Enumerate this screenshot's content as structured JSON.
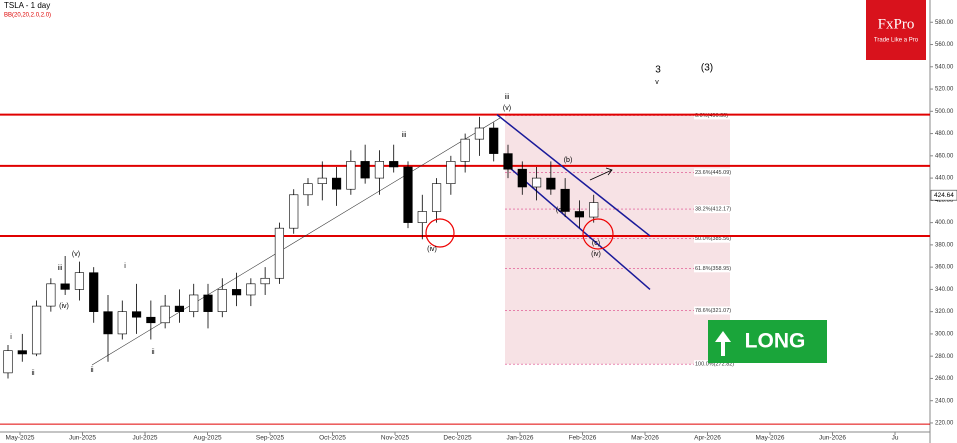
{
  "chart_data": {
    "type": "candlestick",
    "title": "TSLA - 1 day",
    "subtitle": "BB(20,20,2.0,2.0)",
    "x_labels": [
      "May-2025",
      "Jun-2025",
      "Jul-2025",
      "Aug-2025",
      "Sep-2025",
      "Oct-2025",
      "Nov-2025",
      "Dec-2025",
      "Jan-2026",
      "Feb-2026",
      "Mar-2026",
      "Apr-2026",
      "May-2026",
      "Jun-2026",
      "Ju"
    ],
    "open": [
      265,
      285,
      282,
      325,
      345,
      340,
      355,
      320,
      300,
      320,
      315,
      310,
      325,
      320,
      335,
      320,
      340,
      335,
      345,
      350,
      395,
      425,
      435,
      440,
      430,
      455,
      440,
      455,
      450,
      400,
      410,
      435,
      455,
      475,
      485,
      462,
      448,
      432,
      440,
      430,
      410,
      405
    ],
    "high": [
      290,
      300,
      330,
      350,
      370,
      365,
      360,
      335,
      330,
      345,
      330,
      335,
      340,
      345,
      345,
      350,
      355,
      350,
      360,
      400,
      430,
      440,
      455,
      450,
      465,
      470,
      465,
      470,
      455,
      425,
      440,
      460,
      480,
      495,
      490,
      470,
      455,
      450,
      455,
      440,
      420,
      425
    ],
    "low": [
      260,
      275,
      280,
      320,
      335,
      330,
      310,
      275,
      295,
      300,
      295,
      305,
      310,
      315,
      305,
      315,
      325,
      325,
      335,
      345,
      390,
      415,
      420,
      415,
      425,
      435,
      425,
      445,
      395,
      385,
      400,
      425,
      445,
      460,
      455,
      440,
      425,
      420,
      425,
      405,
      395,
      400
    ],
    "close": [
      285,
      282,
      325,
      345,
      340,
      355,
      320,
      300,
      320,
      315,
      310,
      325,
      320,
      335,
      320,
      340,
      335,
      345,
      350,
      395,
      425,
      435,
      440,
      430,
      455,
      440,
      455,
      450,
      400,
      410,
      435,
      455,
      475,
      485,
      462,
      448,
      432,
      440,
      430,
      410,
      405,
      418
    ],
    "ylim": [
      202,
      600
    ],
    "yticks": [
      {
        "value": 580,
        "label": "580.00"
      },
      {
        "value": 560,
        "label": "560.00"
      },
      {
        "value": 540,
        "label": "540.00"
      },
      {
        "value": 520,
        "label": "520.00"
      },
      {
        "value": 500,
        "label": "500.00"
      },
      {
        "value": 480,
        "label": "480.00"
      },
      {
        "value": 460,
        "label": "460.00"
      },
      {
        "value": 440,
        "label": "440.00"
      },
      {
        "value": 420,
        "label": "420.00"
      },
      {
        "value": 400,
        "label": "400.00"
      },
      {
        "value": 380,
        "label": "380.00"
      },
      {
        "value": 360,
        "label": "360.00"
      },
      {
        "value": 340,
        "label": "340.00"
      },
      {
        "value": 320,
        "label": "320.00"
      },
      {
        "value": 300,
        "label": "300.00"
      },
      {
        "value": 280,
        "label": "280.00"
      },
      {
        "value": 260,
        "label": "260.00"
      },
      {
        "value": 240,
        "label": "240.00"
      },
      {
        "value": 220,
        "label": "220.00"
      }
    ],
    "last_price": 424.64,
    "levels": [
      497,
      451,
      388,
      219
    ],
    "level_color": "#e00000",
    "fib": [
      {
        "value": 496.3,
        "label": "0.0%(496.30)"
      },
      {
        "value": 445.09,
        "label": "23.6%(445.09)"
      },
      {
        "value": 412.17,
        "label": "38.2%(412.17)"
      },
      {
        "value": 385.56,
        "label": "50.0%(385.56)"
      },
      {
        "value": 358.95,
        "label": "61.8%(358.95)"
      },
      {
        "value": 321.07,
        "label": "78.6%(321.07)"
      },
      {
        "value": 272.82,
        "label": "100.0%(272.82)"
      }
    ],
    "channel_upper": [
      497,
      388
    ],
    "channel_lower": [
      453,
      340
    ],
    "channel_color": "#1a1a9a",
    "annotations": [
      "3",
      "(3)",
      "v",
      "(v)",
      "iii",
      "iii",
      "(b)",
      "(c)",
      "(c)",
      "(iv)",
      "(iv)",
      "(v)",
      "(iv)",
      "iii",
      "ii",
      "i",
      "ii",
      "i",
      "ii"
    ],
    "logo": {
      "name": "FxPro",
      "tagline": "Trade Like a Pro"
    },
    "signal": "LONG"
  }
}
